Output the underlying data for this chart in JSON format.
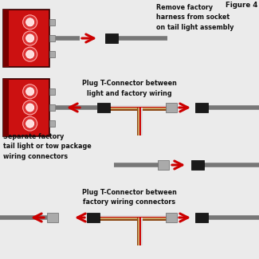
{
  "bg_color": "#ebebeb",
  "title": "Figure 4",
  "text_color": "#111111",
  "red_arrow": "#cc0000",
  "wire_gray": "#777777",
  "wire_tan": "#c8a060",
  "wire_brown": "#8b4513",
  "wire_white": "#dddddd",
  "connector_black": "#1a1a1a",
  "connector_gray": "#aaaaaa",
  "tail_red": "#cc1111",
  "tail_dark": "#990000",
  "tail_strip": "#770000",
  "circ_outer": "#dd3333",
  "circ_inner": "#ffdddd",
  "tab_gray": "#aaaaaa",
  "tab_edge": "#666666",
  "s1_label": "Remove factory\nharness from socket\non tail light assembly",
  "s2_label": "Plug T-Connector between\nlight and factory wiring",
  "s3_label": "Separate factory\ntail light or tow package\nwiring connectors",
  "s4_label": "Plug T-Connector between\nfactory wiring connectors",
  "t_colors": [
    "#8b4513",
    "#c8a060",
    "#cc0000",
    "#dddddd"
  ],
  "t_offsets": [
    -2.5,
    -0.8,
    0.8,
    2.5
  ]
}
